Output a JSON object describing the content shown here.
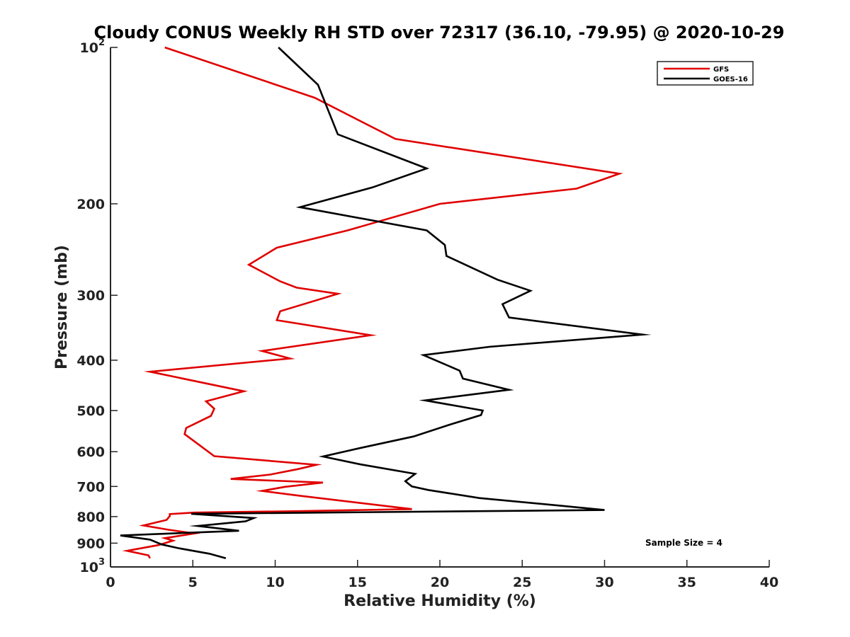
{
  "chart_data": {
    "type": "line",
    "title": "Cloudy CONUS Weekly RH STD over 72317 (36.10, -79.95) @ 2020-10-29",
    "xlabel": "Relative Humidity (%)",
    "ylabel": "Pressure (mb)",
    "xlim": [
      0,
      40
    ],
    "ylim": [
      100,
      1000
    ],
    "yscale": "log",
    "y_reversed": true,
    "grid": false,
    "legend_position": "top-right",
    "x_ticks": [
      "0",
      "5",
      "10",
      "15",
      "20",
      "25",
      "30",
      "35",
      "40"
    ],
    "y_ticks": [
      {
        "base": "10",
        "exp": "2"
      },
      {
        "base": "200",
        "exp": ""
      },
      {
        "base": "300",
        "exp": ""
      },
      {
        "base": "400",
        "exp": ""
      },
      {
        "base": "500",
        "exp": ""
      },
      {
        "base": "600",
        "exp": ""
      },
      {
        "base": "700",
        "exp": ""
      },
      {
        "base": "800",
        "exp": ""
      },
      {
        "base": "900",
        "exp": ""
      },
      {
        "base": "10",
        "exp": "3"
      }
    ],
    "annotation": "Sample Size = 4",
    "series": [
      {
        "name": "GFS",
        "color": "#e00000",
        "points": [
          [
            3.3,
            100
          ],
          [
            12.4,
            125
          ],
          [
            17.3,
            150
          ],
          [
            30.9,
            175
          ],
          [
            28.3,
            187
          ],
          [
            20.0,
            200
          ],
          [
            14.4,
            225
          ],
          [
            10.1,
            243
          ],
          [
            8.4,
            262
          ],
          [
            10.3,
            282
          ],
          [
            11.3,
            290
          ],
          [
            13.8,
            298
          ],
          [
            10.3,
            322
          ],
          [
            10.1,
            335
          ],
          [
            15.8,
            358
          ],
          [
            9.2,
            384
          ],
          [
            10.9,
            397
          ],
          [
            2.4,
            421
          ],
          [
            8.1,
            459
          ],
          [
            5.8,
            480
          ],
          [
            6.3,
            496
          ],
          [
            6.1,
            512
          ],
          [
            4.6,
            540
          ],
          [
            4.5,
            555
          ],
          [
            6.3,
            612
          ],
          [
            12.5,
            636
          ],
          [
            11.4,
            648
          ],
          [
            9.7,
            664
          ],
          [
            7.3,
            677
          ],
          [
            12.9,
            688
          ],
          [
            10.6,
            701
          ],
          [
            9.2,
            714
          ],
          [
            11.4,
            729
          ],
          [
            18.3,
            774
          ],
          [
            11.4,
            781
          ],
          [
            5.1,
            786
          ],
          [
            3.6,
            791
          ],
          [
            3.6,
            798
          ],
          [
            3.4,
            812
          ],
          [
            2.0,
            832
          ],
          [
            3.5,
            848
          ],
          [
            5.1,
            862
          ],
          [
            3.3,
            880
          ],
          [
            3.8,
            890
          ],
          [
            2.9,
            908
          ],
          [
            1.0,
            931
          ],
          [
            2.3,
            950
          ],
          [
            2.4,
            962
          ]
        ]
      },
      {
        "name": "GOES-16",
        "color": "#000000",
        "points": [
          [
            10.2,
            100
          ],
          [
            12.6,
            118
          ],
          [
            13.8,
            147
          ],
          [
            19.2,
            171
          ],
          [
            15.9,
            186
          ],
          [
            11.5,
            203
          ],
          [
            19.2,
            225
          ],
          [
            20.3,
            240
          ],
          [
            20.4,
            252
          ],
          [
            23.5,
            280
          ],
          [
            25.5,
            294
          ],
          [
            23.8,
            312
          ],
          [
            24.2,
            331
          ],
          [
            32.3,
            357
          ],
          [
            23.0,
            377
          ],
          [
            19.0,
            391
          ],
          [
            21.2,
            419
          ],
          [
            21.4,
            434
          ],
          [
            24.2,
            456
          ],
          [
            19.1,
            478
          ],
          [
            22.6,
            500
          ],
          [
            22.5,
            510
          ],
          [
            20.7,
            531
          ],
          [
            18.4,
            561
          ],
          [
            15.2,
            590
          ],
          [
            12.9,
            613
          ],
          [
            15.2,
            635
          ],
          [
            18.5,
            662
          ],
          [
            17.9,
            684
          ],
          [
            18.3,
            700
          ],
          [
            19.3,
            711
          ],
          [
            22.4,
            737
          ],
          [
            27.3,
            762
          ],
          [
            30.0,
            777
          ],
          [
            4.9,
            790
          ],
          [
            8.7,
            805
          ],
          [
            8.2,
            817
          ],
          [
            5.3,
            834
          ],
          [
            7.8,
            852
          ],
          [
            0.6,
            870
          ],
          [
            2.4,
            886
          ],
          [
            3.1,
            905
          ],
          [
            4.1,
            920
          ],
          [
            6.0,
            943
          ],
          [
            7.0,
            962
          ]
        ]
      }
    ]
  }
}
